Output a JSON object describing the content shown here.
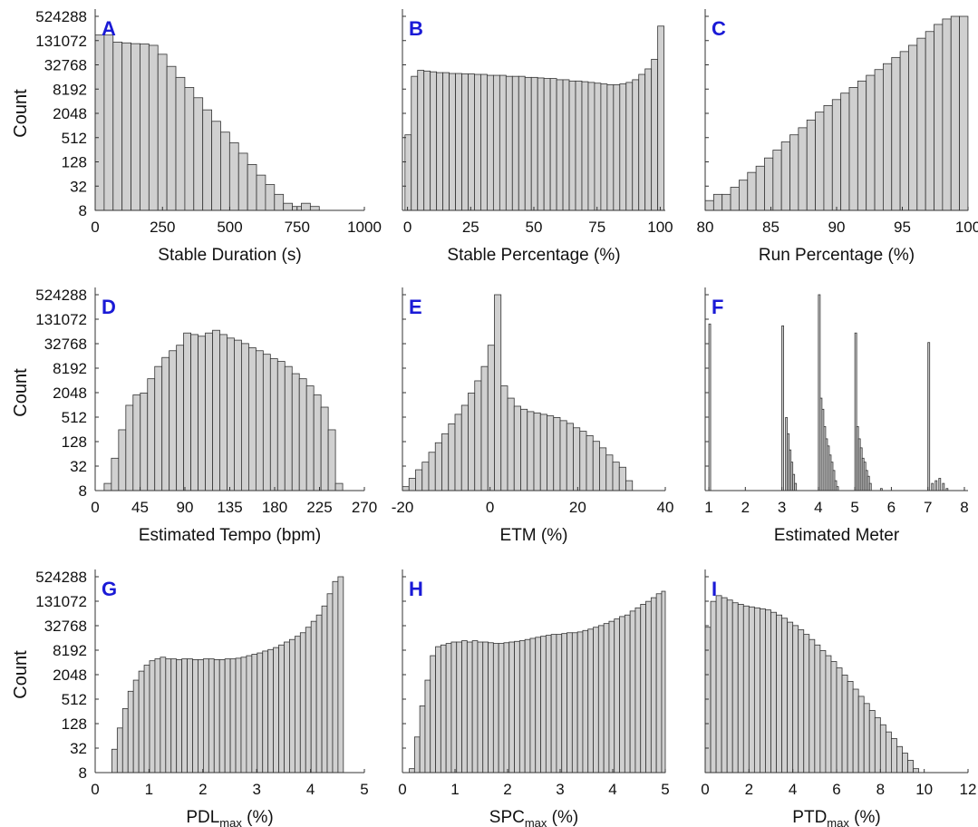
{
  "figure": {
    "ylabel": "Count",
    "yticks": [
      "8",
      "32",
      "128",
      "512",
      "2048",
      "8192",
      "32768",
      "131072",
      "524288"
    ]
  },
  "chart_data": [
    {
      "panel": "A",
      "type": "bar",
      "ylabel": "Count",
      "yscale": "log2",
      "xlabel": "Stable Duration (s)",
      "xlim": [
        0,
        1000
      ],
      "xticks": [
        0,
        250,
        500,
        750,
        1000
      ],
      "bin_start": 0,
      "bin_width": 33.3,
      "values": [
        180000,
        180000,
        120000,
        115000,
        110000,
        108000,
        100000,
        60000,
        30000,
        16000,
        9000,
        5000,
        2500,
        1300,
        700,
        380,
        210,
        110,
        60,
        35,
        20,
        12,
        10,
        12,
        10
      ]
    },
    {
      "panel": "B",
      "type": "bar",
      "ylabel": "",
      "yscale": "log2",
      "xlabel": "Stable Percentage (%)",
      "xlim": [
        -2,
        102
      ],
      "xticks": [
        0,
        25,
        50,
        75,
        100
      ],
      "bin_start": -1,
      "bin_width": 2.5,
      "values": [
        600,
        17000,
        24000,
        23000,
        22000,
        21000,
        21000,
        20000,
        20000,
        19500,
        19500,
        19000,
        19000,
        18000,
        18000,
        18000,
        17000,
        17000,
        17000,
        16000,
        16000,
        15500,
        15000,
        15000,
        14000,
        14000,
        13000,
        13000,
        12500,
        12000,
        11500,
        11000,
        10500,
        10500,
        11000,
        12000,
        14000,
        19000,
        26000,
        45000,
        300000
      ]
    },
    {
      "panel": "C",
      "type": "bar",
      "ylabel": "",
      "yscale": "log2",
      "xlabel": "Run Percentage (%)",
      "xlim": [
        80,
        100
      ],
      "xticks": [
        80,
        85,
        90,
        95,
        100
      ],
      "bin_start": 80,
      "bin_width": 0.645,
      "values": [
        14,
        20,
        20,
        30,
        45,
        70,
        100,
        160,
        250,
        400,
        600,
        900,
        1400,
        2200,
        3200,
        4500,
        6500,
        9000,
        13000,
        18000,
        25000,
        35000,
        50000,
        70000,
        100000,
        150000,
        220000,
        330000,
        450000,
        600000,
        650000
      ]
    },
    {
      "panel": "D",
      "type": "bar",
      "ylabel": "Count",
      "yscale": "log2",
      "xlabel": "Estimated Tempo (bpm)",
      "xlim": [
        0,
        270
      ],
      "xticks": [
        0,
        45,
        90,
        135,
        180,
        225,
        270
      ],
      "bin_start": 9,
      "bin_width": 7.25,
      "values": [
        12,
        50,
        250,
        1000,
        1800,
        2000,
        4500,
        9000,
        15000,
        22000,
        30000,
        60000,
        55000,
        50000,
        60000,
        70000,
        55000,
        45000,
        40000,
        33000,
        26000,
        22000,
        18000,
        14000,
        12000,
        9000,
        6000,
        4500,
        3000,
        1800,
        900,
        250,
        12,
        8
      ]
    },
    {
      "panel": "E",
      "type": "bar",
      "ylabel": "",
      "yscale": "log2",
      "xlabel": "ETM (%)",
      "xlim": [
        -20,
        40
      ],
      "xticks": [
        -20,
        0,
        20,
        40
      ],
      "bin_start": -20,
      "bin_width": 1.5,
      "values": [
        10,
        16,
        26,
        40,
        70,
        120,
        200,
        350,
        600,
        1000,
        2000,
        4000,
        9000,
        30000,
        600000,
        3000,
        1500,
        950,
        800,
        700,
        650,
        600,
        550,
        500,
        420,
        360,
        280,
        230,
        180,
        130,
        90,
        60,
        40,
        30,
        14
      ]
    },
    {
      "panel": "F",
      "type": "bar",
      "ylabel": "",
      "yscale": "log2",
      "xlabel": "Estimated Meter",
      "xlim": [
        0.9,
        8.1
      ],
      "xticks": [
        1,
        2,
        3,
        4,
        5,
        6,
        7,
        8
      ],
      "bin_width": 0.05,
      "bins": [
        [
          1.0,
          100000
        ],
        [
          3.0,
          90000
        ],
        [
          3.1,
          500
        ],
        [
          3.15,
          200
        ],
        [
          3.2,
          80
        ],
        [
          3.25,
          40
        ],
        [
          3.3,
          20
        ],
        [
          3.35,
          12
        ],
        [
          4.0,
          600000
        ],
        [
          4.05,
          1500
        ],
        [
          4.1,
          800
        ],
        [
          4.15,
          300
        ],
        [
          4.2,
          150
        ],
        [
          4.25,
          100
        ],
        [
          4.3,
          60
        ],
        [
          4.35,
          40
        ],
        [
          4.4,
          25
        ],
        [
          4.45,
          14
        ],
        [
          4.5,
          10
        ],
        [
          5.0,
          60000
        ],
        [
          5.05,
          300
        ],
        [
          5.1,
          150
        ],
        [
          5.15,
          90
        ],
        [
          5.2,
          50
        ],
        [
          5.25,
          40
        ],
        [
          5.3,
          25
        ],
        [
          5.35,
          18
        ],
        [
          5.4,
          12
        ],
        [
          5.5,
          8
        ],
        [
          5.7,
          9
        ],
        [
          7.0,
          35000
        ],
        [
          7.1,
          12
        ],
        [
          7.2,
          14
        ],
        [
          7.3,
          16
        ],
        [
          7.4,
          12
        ],
        [
          7.5,
          9
        ]
      ]
    },
    {
      "panel": "G",
      "type": "bar",
      "ylabel": "Count",
      "yscale": "log2",
      "xlabel": "PDL_max (%)",
      "xlim": [
        0,
        5
      ],
      "xticks": [
        0,
        1,
        2,
        3,
        4,
        5
      ],
      "bin_start": 0.31,
      "bin_width": 0.1,
      "values": [
        30,
        100,
        300,
        800,
        1500,
        2500,
        3500,
        4500,
        5000,
        5500,
        5000,
        5000,
        4800,
        5000,
        5000,
        4800,
        4800,
        5000,
        5000,
        4800,
        4800,
        5000,
        5000,
        5200,
        5500,
        6000,
        6500,
        7000,
        7800,
        8500,
        9500,
        11000,
        13000,
        15000,
        18000,
        22000,
        30000,
        42000,
        60000,
        100000,
        200000,
        400000,
        700000
      ]
    },
    {
      "panel": "H",
      "type": "bar",
      "ylabel": "",
      "yscale": "log2",
      "xlabel": "SPC_max (%)",
      "xlim": [
        0,
        5
      ],
      "xticks": [
        0,
        1,
        2,
        3,
        4,
        5
      ],
      "bin_start": 0.13,
      "bin_width": 0.1,
      "values": [
        10,
        60,
        350,
        1500,
        6000,
        10000,
        11000,
        12000,
        13000,
        13000,
        14000,
        13000,
        14000,
        13000,
        13000,
        12500,
        12000,
        12000,
        12500,
        13000,
        13500,
        14000,
        15000,
        16000,
        17000,
        18000,
        19000,
        20000,
        20000,
        21000,
        22000,
        22000,
        23000,
        25000,
        27000,
        30000,
        33000,
        37000,
        42000,
        48000,
        55000,
        60000,
        75000,
        90000,
        110000,
        130000,
        160000,
        200000,
        230000
      ]
    },
    {
      "panel": "I",
      "type": "bar",
      "ylabel": "",
      "yscale": "log2",
      "xlabel": "PTD_max (%)",
      "xlim": [
        0,
        12
      ],
      "xticks": [
        0,
        2,
        4,
        6,
        8,
        10,
        12
      ],
      "bin_start": 0,
      "bin_width": 0.25,
      "values": [
        30000,
        130000,
        180000,
        160000,
        140000,
        120000,
        110000,
        100000,
        95000,
        90000,
        85000,
        80000,
        70000,
        60000,
        50000,
        40000,
        33000,
        26000,
        20000,
        15000,
        11000,
        8000,
        6000,
        4300,
        3000,
        2000,
        1400,
        900,
        600,
        400,
        270,
        180,
        120,
        80,
        55,
        35,
        24,
        16,
        10,
        6,
        4,
        3,
        2,
        2,
        2,
        2
      ]
    }
  ]
}
